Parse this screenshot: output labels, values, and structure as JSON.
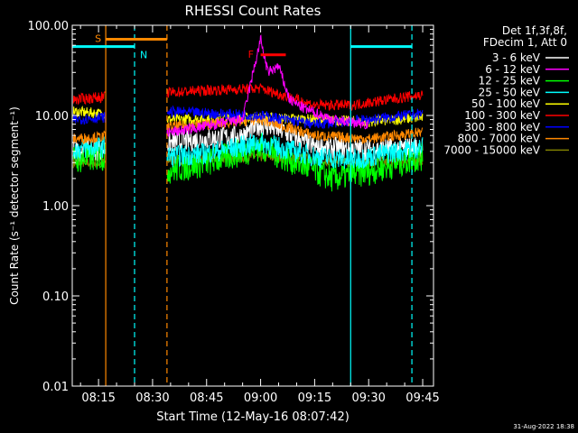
{
  "chart_data": {
    "type": "line",
    "title": "RHESSI Count Rates",
    "xlabel": "Start Time (12-May-16 08:07:42)",
    "ylabel": "Count Rate (s⁻¹ detector segment⁻¹)",
    "yscale": "log",
    "ylim": [
      0.01,
      100
    ],
    "xlim": [
      "08:07:42",
      "09:48:00"
    ],
    "yticks": [
      "0.01",
      "0.10",
      "1.00",
      "10.00",
      "100.00"
    ],
    "xticks": [
      "08:15",
      "08:30",
      "08:45",
      "09:00",
      "09:15",
      "09:30",
      "09:45"
    ],
    "legend_title": [
      "Det 1f,3f,8f,",
      "FDecim 1, Att 0"
    ],
    "legend_position": "right",
    "data_gap": [
      "08:17",
      "08:34"
    ],
    "series": [
      {
        "name": "3 - 6 keV",
        "color": "#ffffff",
        "x": [
          "08:08",
          "08:16",
          "08:35",
          "08:45",
          "08:55",
          "09:00",
          "09:05",
          "09:15",
          "09:30",
          "09:45"
        ],
        "values": [
          4.0,
          4.2,
          5.0,
          5.5,
          6.0,
          8.0,
          7.0,
          4.5,
          4.2,
          4.5
        ]
      },
      {
        "name": "6 - 12 keV",
        "color": "#ff00ff",
        "x": [
          "08:35",
          "08:55",
          "09:00",
          "09:02",
          "09:05",
          "09:08",
          "09:12",
          "09:20",
          "09:30"
        ],
        "values": [
          6.5,
          9.0,
          70.0,
          30.0,
          35.0,
          15.0,
          12.0,
          9.0,
          8.0
        ]
      },
      {
        "name": "12 - 25 keV",
        "color": "#00ff00",
        "x": [
          "08:08",
          "08:16",
          "08:35",
          "08:45",
          "09:00",
          "09:10",
          "09:20",
          "09:30",
          "09:45"
        ],
        "values": [
          3.2,
          3.5,
          2.5,
          3.0,
          4.5,
          3.0,
          2.0,
          2.4,
          3.5
        ]
      },
      {
        "name": "25 - 50 keV",
        "color": "#00ffff",
        "x": [
          "08:08",
          "08:16",
          "08:35",
          "08:45",
          "09:00",
          "09:15",
          "09:25",
          "09:45"
        ],
        "values": [
          4.2,
          4.5,
          3.5,
          3.8,
          5.0,
          3.5,
          3.2,
          4.5
        ]
      },
      {
        "name": "50 - 100 keV",
        "color": "#ffff00",
        "x": [
          "08:08",
          "08:16",
          "08:35",
          "09:00",
          "09:30",
          "09:45"
        ],
        "values": [
          11.0,
          10.5,
          9.0,
          9.5,
          8.5,
          9.5
        ]
      },
      {
        "name": "100 - 300 keV",
        "color": "#ff0000",
        "x": [
          "08:08",
          "08:16",
          "08:35",
          "08:45",
          "09:00",
          "09:15",
          "09:25",
          "09:45"
        ],
        "values": [
          15.0,
          16.0,
          18.0,
          19.0,
          20.0,
          13.0,
          13.0,
          17.0
        ]
      },
      {
        "name": "300 - 800 keV",
        "color": "#0000ff",
        "x": [
          "08:08",
          "08:16",
          "08:35",
          "09:00",
          "09:15",
          "09:30",
          "09:45"
        ],
        "values": [
          9.0,
          9.5,
          11.0,
          10.0,
          8.0,
          9.0,
          10.5
        ]
      },
      {
        "name": "800 - 7000 keV",
        "color": "#ff8800",
        "x": [
          "08:08",
          "08:16",
          "08:35",
          "08:45",
          "09:00",
          "09:15",
          "09:30",
          "09:45"
        ],
        "values": [
          5.5,
          5.8,
          7.5,
          8.0,
          9.0,
          6.0,
          5.5,
          6.5
        ]
      },
      {
        "name": "7000 - 15000 keV",
        "color": "#808000",
        "x": [
          "08:08",
          "08:16",
          "08:35",
          "09:00",
          "09:30",
          "09:45"
        ],
        "values": [
          3.0,
          3.0,
          3.2,
          3.5,
          3.0,
          3.2
        ]
      }
    ],
    "annotations": [
      {
        "label": "S",
        "color": "#ff8800",
        "x_start": "08:17",
        "x_end": "08:34",
        "y": 70
      },
      {
        "label": "N",
        "color": "#00ffff",
        "x_start": "08:07:42",
        "x_end": "08:25",
        "y": 58
      },
      {
        "label": "F",
        "color": "#ff0000",
        "x_start": "09:00",
        "x_end": "09:07",
        "y": 47
      },
      {
        "label": "",
        "color": "#00ffff",
        "x_start": "09:25",
        "x_end": "09:42",
        "y": 58
      }
    ],
    "vlines": [
      {
        "x": "08:17",
        "color": "#ff8800",
        "style": "solid"
      },
      {
        "x": "08:25",
        "color": "#00ffff",
        "style": "dashed"
      },
      {
        "x": "08:34",
        "color": "#ff8800",
        "style": "dashed"
      },
      {
        "x": "09:25",
        "color": "#00ffff",
        "style": "solid"
      },
      {
        "x": "09:42",
        "color": "#00ffff",
        "style": "dashed"
      }
    ],
    "footer": "31-Aug-2022 18:38"
  }
}
